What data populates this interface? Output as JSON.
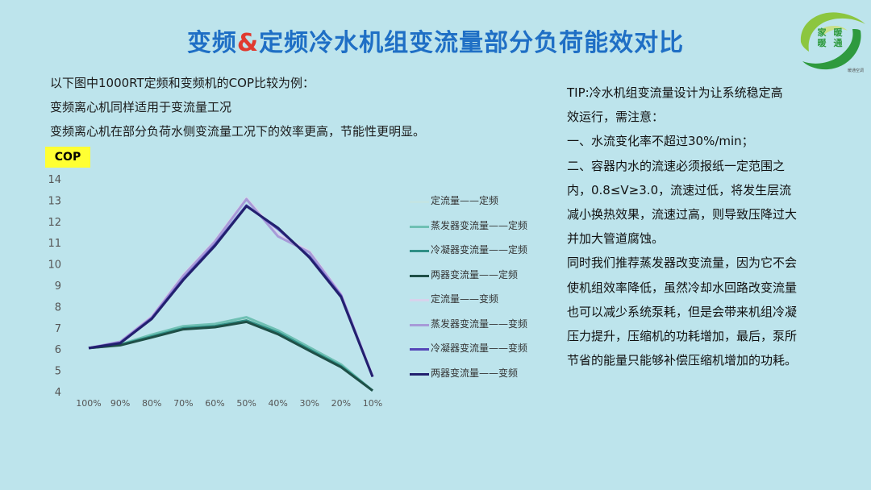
{
  "slide": {
    "title_part1": "变频",
    "title_amp": "&",
    "title_part2": "定频冷水机组变流量部分负荷能效对比",
    "intro_lines": [
      "以下图中1000RT定频和变频机的COP比较为例：",
      "变频离心机同样适用于变流量工况",
      "变频离心机在部分负荷水侧变流量工况下的效率更高，节能性更明显。"
    ],
    "tip_lines": [
      "TIP:冷水机组变流量设计为让系统稳定高",
      "效运行，需注意：",
      "一、水流变化率不超过30%/min；",
      "二、容器内水的流速必须报纸一定范围之",
      "内，0.8≤V≥3.0，流速过低，将发生层流",
      "减小换热效果，流速过高，则导致压降过大",
      "并加大管道腐蚀。",
      "同时我们推荐蒸发器改变流量，因为它不会",
      "使机组效率降低，虽然冷却水回路改变流量",
      "也可以减少系统泵耗，但是会带来机组冷凝",
      "压力提升，压缩机的功耗增加，最后，泵所",
      "节省的能量只能够补偿压缩机增加的功耗。"
    ],
    "logo": {
      "text_left": [
        "家",
        "暖"
      ],
      "text_right": [
        "暖",
        "通"
      ],
      "tiny_text": "暖通空调"
    }
  },
  "chart_data": {
    "type": "line",
    "ylabel": "COP",
    "ylim": [
      4,
      14
    ],
    "yticks": [
      4,
      5,
      6,
      7,
      8,
      9,
      10,
      11,
      12,
      13,
      14
    ],
    "categories": [
      "100%",
      "90%",
      "80%",
      "70%",
      "60%",
      "50%",
      "40%",
      "30%",
      "20%",
      "10%"
    ],
    "grid": false,
    "legend_position": "right",
    "series": [
      {
        "name": "定流量——定频",
        "color": "#c3e4e4",
        "values": [
          6.05,
          6.22,
          6.65,
          7.05,
          7.15,
          7.45,
          6.85,
          6.05,
          5.25,
          4.05
        ]
      },
      {
        "name": "蒸发器变流量——定频",
        "color": "#6fc0b4",
        "values": [
          6.05,
          6.22,
          6.68,
          7.08,
          7.18,
          7.5,
          6.88,
          6.08,
          5.28,
          4.05
        ]
      },
      {
        "name": "冷凝器变流量——定频",
        "color": "#2f8f86",
        "values": [
          6.05,
          6.2,
          6.6,
          6.98,
          7.08,
          7.35,
          6.78,
          5.98,
          5.2,
          4.05
        ]
      },
      {
        "name": "两器变流量——定频",
        "color": "#1f4f47",
        "values": [
          6.05,
          6.18,
          6.55,
          6.93,
          7.03,
          7.28,
          6.7,
          5.92,
          5.15,
          4.05
        ]
      },
      {
        "name": "定流量——变频",
        "color": "#d7d3ec",
        "values": [
          6.05,
          6.35,
          7.55,
          9.5,
          11.1,
          13.1,
          11.4,
          10.6,
          8.6,
          4.75
        ]
      },
      {
        "name": "蒸发器变流量——变频",
        "color": "#a79ad8",
        "values": [
          6.05,
          6.35,
          7.5,
          9.45,
          11.05,
          13.05,
          11.3,
          10.55,
          8.55,
          4.72
        ]
      },
      {
        "name": "冷凝器变流量——变频",
        "color": "#5546b8",
        "values": [
          6.05,
          6.3,
          7.45,
          9.3,
          10.9,
          12.75,
          11.65,
          10.35,
          8.5,
          4.7
        ]
      },
      {
        "name": "两器变流量——变频",
        "color": "#22206e",
        "values": [
          6.05,
          6.28,
          7.42,
          9.25,
          10.85,
          12.72,
          11.7,
          10.3,
          8.45,
          4.7
        ]
      }
    ]
  }
}
